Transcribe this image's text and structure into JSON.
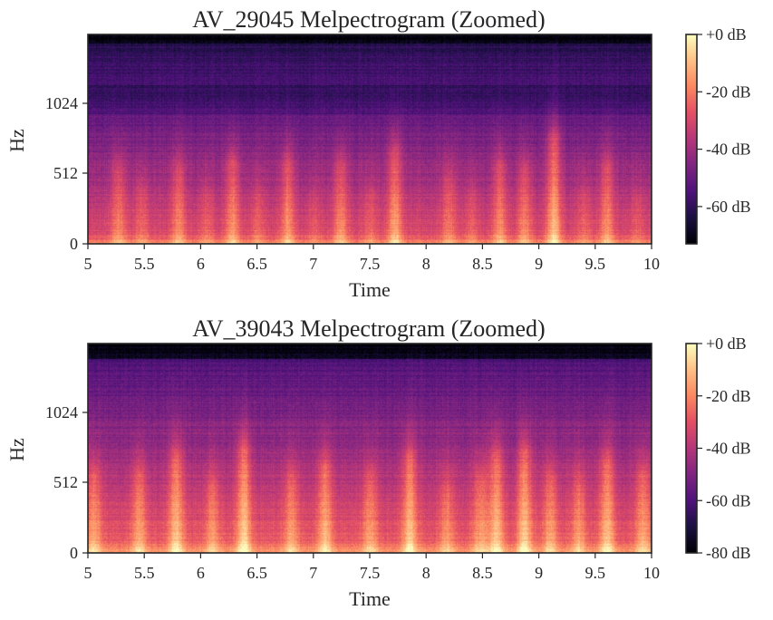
{
  "chart_data": [
    {
      "type": "heatmap",
      "title": "AV_29045 Melpectrogram (Zoomed)",
      "xlabel": "Time",
      "ylabel": "Hz",
      "xlim": [
        5,
        10
      ],
      "xticks": [
        5,
        5.5,
        6,
        6.5,
        7,
        7.5,
        8,
        8.5,
        9,
        9.5,
        10
      ],
      "xtick_labels": [
        "5",
        "5.5",
        "6",
        "6.5",
        "7",
        "7.5",
        "8",
        "8.5",
        "9",
        "9.5",
        "10"
      ],
      "ytick_labels": [
        "0",
        "512",
        "1024"
      ],
      "colormap": "magma",
      "colorbar": {
        "range_db": [
          -73,
          0
        ],
        "ticks": [
          0,
          -20,
          -40,
          -60
        ],
        "tick_labels": [
          "+0 dB",
          "-20 dB",
          "-40 dB",
          "-60 dB"
        ]
      },
      "onsets": [
        {
          "t": 5.27,
          "i": 0.55
        },
        {
          "t": 5.47,
          "i": 0.35
        },
        {
          "t": 5.8,
          "i": 0.55
        },
        {
          "t": 6.05,
          "i": 0.3
        },
        {
          "t": 6.28,
          "i": 0.65
        },
        {
          "t": 6.5,
          "i": 0.3
        },
        {
          "t": 6.77,
          "i": 0.65
        },
        {
          "t": 7.0,
          "i": 0.2
        },
        {
          "t": 7.24,
          "i": 0.6
        },
        {
          "t": 7.5,
          "i": 0.3
        },
        {
          "t": 7.72,
          "i": 0.75
        },
        {
          "t": 8.2,
          "i": 0.45
        },
        {
          "t": 8.4,
          "i": 0.3
        },
        {
          "t": 8.65,
          "i": 0.6
        },
        {
          "t": 8.87,
          "i": 0.55
        },
        {
          "t": 9.13,
          "i": 0.9
        },
        {
          "t": 9.4,
          "i": 0.3
        },
        {
          "t": 9.6,
          "i": 0.6
        },
        {
          "t": 9.87,
          "i": 0.25
        }
      ]
    },
    {
      "type": "heatmap",
      "title": "AV_39043 Melpectrogram (Zoomed)",
      "xlabel": "Time",
      "ylabel": "Hz",
      "xlim": [
        5,
        10
      ],
      "xticks": [
        5,
        5.5,
        6,
        6.5,
        7,
        7.5,
        8,
        8.5,
        9,
        9.5,
        10
      ],
      "xtick_labels": [
        "5",
        "5.5",
        "6",
        "6.5",
        "7",
        "7.5",
        "8",
        "8.5",
        "9",
        "9.5",
        "10"
      ],
      "ytick_labels": [
        "0",
        "512",
        "1024"
      ],
      "colormap": "magma",
      "colorbar": {
        "range_db": [
          -80,
          0
        ],
        "ticks": [
          0,
          -20,
          -40,
          -60,
          -80
        ],
        "tick_labels": [
          "+0 dB",
          "-20 dB",
          "-40 dB",
          "-60 dB",
          "-80 dB"
        ]
      },
      "onsets": [
        {
          "t": 5.05,
          "i": 0.6
        },
        {
          "t": 5.45,
          "i": 0.6
        },
        {
          "t": 5.78,
          "i": 0.8
        },
        {
          "t": 6.1,
          "i": 0.5
        },
        {
          "t": 6.38,
          "i": 0.9
        },
        {
          "t": 6.8,
          "i": 0.55
        },
        {
          "t": 7.1,
          "i": 0.7
        },
        {
          "t": 7.5,
          "i": 0.55
        },
        {
          "t": 7.85,
          "i": 0.8
        },
        {
          "t": 8.18,
          "i": 0.45
        },
        {
          "t": 8.48,
          "i": 0.55
        },
        {
          "t": 8.62,
          "i": 0.8
        },
        {
          "t": 8.87,
          "i": 0.85
        },
        {
          "t": 9.1,
          "i": 0.55
        },
        {
          "t": 9.35,
          "i": 0.5
        },
        {
          "t": 9.6,
          "i": 0.75
        },
        {
          "t": 9.92,
          "i": 0.6
        }
      ]
    }
  ]
}
